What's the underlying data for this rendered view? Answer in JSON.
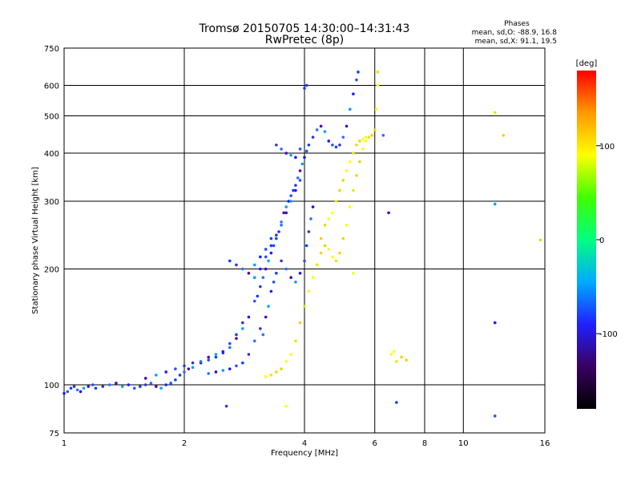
{
  "chart_data": {
    "type": "scatter",
    "title": "Tromsø 20150705 14:30:00–14:31:43",
    "subtitle": "RwPretec (8p)",
    "xlabel": "Frequency [MHz]",
    "ylabel": "Stationary phase Virtual Height [km]",
    "x_scale": "log",
    "y_scale": "log",
    "xlim": [
      1,
      16
    ],
    "ylim": [
      75,
      750
    ],
    "grid": true,
    "x_ticks": [
      1,
      2,
      4,
      6,
      8,
      10,
      16
    ],
    "x_tick_labels": [
      "1",
      "2",
      "4",
      "6",
      "8",
      "10",
      "16"
    ],
    "y_ticks": [
      75,
      100,
      200,
      300,
      400,
      500,
      600,
      750
    ],
    "y_tick_labels": [
      "75",
      "100",
      "200",
      "300",
      "400",
      "500",
      "600",
      "750"
    ],
    "legend": {
      "heading": "Phases",
      "line1": "mean, sd,O: -88.9, 16.8",
      "line2": "mean, sd,X:  91.1, 19.5"
    },
    "colorbar": {
      "label": "[deg]",
      "range": [
        -180,
        180
      ],
      "ticks": [
        100,
        0,
        -100
      ],
      "tick_labels": [
        "100",
        "0",
        "-100"
      ],
      "colors": [
        "#000000",
        "#3a0060",
        "#2020ff",
        "#00aaff",
        "#00ff80",
        "#40ff00",
        "#ffff00",
        "#ff9900",
        "#ff0000"
      ]
    },
    "series": [
      {
        "name": "O",
        "points": [
          [
            1.0,
            95
          ],
          [
            1.02,
            96
          ],
          [
            1.04,
            98
          ],
          [
            1.06,
            99
          ],
          [
            1.08,
            97
          ],
          [
            1.1,
            96
          ],
          [
            1.12,
            98
          ],
          [
            1.15,
            99
          ],
          [
            1.18,
            100
          ],
          [
            1.2,
            98
          ],
          [
            1.25,
            99
          ],
          [
            1.3,
            100
          ],
          [
            1.35,
            101
          ],
          [
            1.4,
            99
          ],
          [
            1.45,
            100
          ],
          [
            1.5,
            98
          ],
          [
            1.55,
            99
          ],
          [
            1.6,
            100
          ],
          [
            1.65,
            101
          ],
          [
            1.7,
            99
          ],
          [
            1.75,
            98
          ],
          [
            1.8,
            100
          ],
          [
            1.85,
            101
          ],
          [
            1.9,
            103
          ],
          [
            1.95,
            106
          ],
          [
            2.0,
            108
          ],
          [
            2.05,
            110
          ],
          [
            2.1,
            111
          ],
          [
            2.2,
            114
          ],
          [
            2.3,
            116
          ],
          [
            2.4,
            118
          ],
          [
            2.5,
            121
          ],
          [
            2.6,
            125
          ],
          [
            2.7,
            132
          ],
          [
            2.8,
            140
          ],
          [
            2.9,
            150
          ],
          [
            3.0,
            165
          ],
          [
            3.05,
            170
          ],
          [
            3.1,
            180
          ],
          [
            3.15,
            190
          ],
          [
            3.2,
            200
          ],
          [
            3.25,
            210
          ],
          [
            3.3,
            220
          ],
          [
            3.35,
            230
          ],
          [
            3.4,
            240
          ],
          [
            3.45,
            250
          ],
          [
            3.5,
            265
          ],
          [
            3.55,
            280
          ],
          [
            3.6,
            290
          ],
          [
            3.65,
            300
          ],
          [
            3.7,
            310
          ],
          [
            3.75,
            320
          ],
          [
            3.8,
            330
          ],
          [
            3.85,
            345
          ],
          [
            3.9,
            360
          ],
          [
            3.95,
            375
          ],
          [
            4.0,
            390
          ],
          [
            4.05,
            405
          ],
          [
            4.1,
            420
          ],
          [
            4.2,
            440
          ],
          [
            4.3,
            460
          ],
          [
            4.4,
            470
          ],
          [
            4.5,
            455
          ],
          [
            4.6,
            430
          ],
          [
            4.7,
            420
          ],
          [
            4.8,
            415
          ],
          [
            4.9,
            420
          ],
          [
            5.0,
            440
          ],
          [
            5.1,
            470
          ],
          [
            5.2,
            520
          ],
          [
            5.3,
            570
          ],
          [
            5.4,
            620
          ],
          [
            5.45,
            650
          ],
          [
            3.1,
            140
          ],
          [
            3.15,
            135
          ],
          [
            3.2,
            150
          ],
          [
            3.25,
            160
          ],
          [
            3.3,
            175
          ],
          [
            3.35,
            185
          ],
          [
            3.4,
            195
          ],
          [
            3.5,
            210
          ],
          [
            3.6,
            200
          ],
          [
            3.7,
            190
          ],
          [
            3.8,
            185
          ],
          [
            3.9,
            195
          ],
          [
            4.0,
            210
          ],
          [
            4.05,
            230
          ],
          [
            4.1,
            250
          ],
          [
            4.15,
            270
          ],
          [
            4.2,
            290
          ],
          [
            3.0,
            190
          ],
          [
            3.1,
            200
          ],
          [
            3.2,
            215
          ],
          [
            3.3,
            230
          ],
          [
            3.4,
            245
          ],
          [
            3.5,
            260
          ],
          [
            3.6,
            280
          ],
          [
            3.7,
            300
          ],
          [
            3.8,
            320
          ],
          [
            3.9,
            340
          ],
          [
            2.6,
            210
          ],
          [
            2.7,
            205
          ],
          [
            2.8,
            200
          ],
          [
            2.9,
            195
          ],
          [
            3.0,
            205
          ],
          [
            3.1,
            215
          ],
          [
            3.2,
            225
          ],
          [
            3.3,
            240
          ],
          [
            3.4,
            420
          ],
          [
            3.5,
            410
          ],
          [
            3.6,
            400
          ],
          [
            3.7,
            395
          ],
          [
            3.8,
            390
          ],
          [
            3.9,
            410
          ],
          [
            4.0,
            590
          ],
          [
            4.05,
            600
          ],
          [
            2.3,
            107
          ],
          [
            2.4,
            108
          ],
          [
            2.5,
            109
          ],
          [
            2.6,
            110
          ],
          [
            2.7,
            112
          ],
          [
            2.8,
            114
          ],
          [
            2.9,
            120
          ],
          [
            3.0,
            130
          ],
          [
            1.6,
            104
          ],
          [
            1.7,
            106
          ],
          [
            1.8,
            108
          ],
          [
            1.9,
            110
          ],
          [
            2.0,
            112
          ],
          [
            2.1,
            114
          ],
          [
            2.2,
            115
          ],
          [
            2.3,
            118
          ],
          [
            2.4,
            120
          ],
          [
            2.5,
            122
          ],
          [
            2.6,
            128
          ],
          [
            2.7,
            135
          ],
          [
            2.8,
            145
          ],
          [
            6.3,
            445
          ],
          [
            6.5,
            280
          ],
          [
            12.0,
            295
          ],
          [
            12.0,
            145
          ],
          [
            12.0,
            83
          ],
          [
            6.8,
            90
          ],
          [
            2.55,
            88
          ]
        ]
      },
      {
        "name": "X",
        "points": [
          [
            3.2,
            105
          ],
          [
            3.3,
            106
          ],
          [
            3.4,
            108
          ],
          [
            3.5,
            110
          ],
          [
            3.6,
            115
          ],
          [
            3.7,
            120
          ],
          [
            3.8,
            130
          ],
          [
            3.9,
            145
          ],
          [
            4.0,
            160
          ],
          [
            4.1,
            175
          ],
          [
            4.2,
            190
          ],
          [
            4.3,
            205
          ],
          [
            4.4,
            220
          ],
          [
            4.5,
            230
          ],
          [
            4.6,
            225
          ],
          [
            4.7,
            215
          ],
          [
            4.8,
            210
          ],
          [
            4.9,
            220
          ],
          [
            5.0,
            240
          ],
          [
            5.1,
            260
          ],
          [
            5.2,
            290
          ],
          [
            5.3,
            320
          ],
          [
            5.4,
            350
          ],
          [
            5.5,
            380
          ],
          [
            5.6,
            410
          ],
          [
            5.7,
            430
          ],
          [
            5.8,
            440
          ],
          [
            5.9,
            445
          ],
          [
            6.0,
            460
          ],
          [
            6.05,
            520
          ],
          [
            6.1,
            600
          ],
          [
            6.1,
            650
          ],
          [
            4.4,
            240
          ],
          [
            4.5,
            260
          ],
          [
            4.6,
            270
          ],
          [
            4.7,
            280
          ],
          [
            4.8,
            300
          ],
          [
            4.9,
            320
          ],
          [
            5.0,
            340
          ],
          [
            5.1,
            360
          ],
          [
            5.2,
            380
          ],
          [
            5.3,
            400
          ],
          [
            5.4,
            420
          ],
          [
            5.5,
            430
          ],
          [
            5.6,
            435
          ],
          [
            5.7,
            440
          ],
          [
            6.8,
            115
          ],
          [
            7.0,
            118
          ],
          [
            7.2,
            116
          ],
          [
            6.6,
            120
          ],
          [
            6.7,
            122
          ],
          [
            12.0,
            510
          ],
          [
            12.6,
            445
          ],
          [
            15.6,
            238
          ],
          [
            5.3,
            195
          ],
          [
            3.6,
            88
          ]
        ]
      }
    ]
  }
}
